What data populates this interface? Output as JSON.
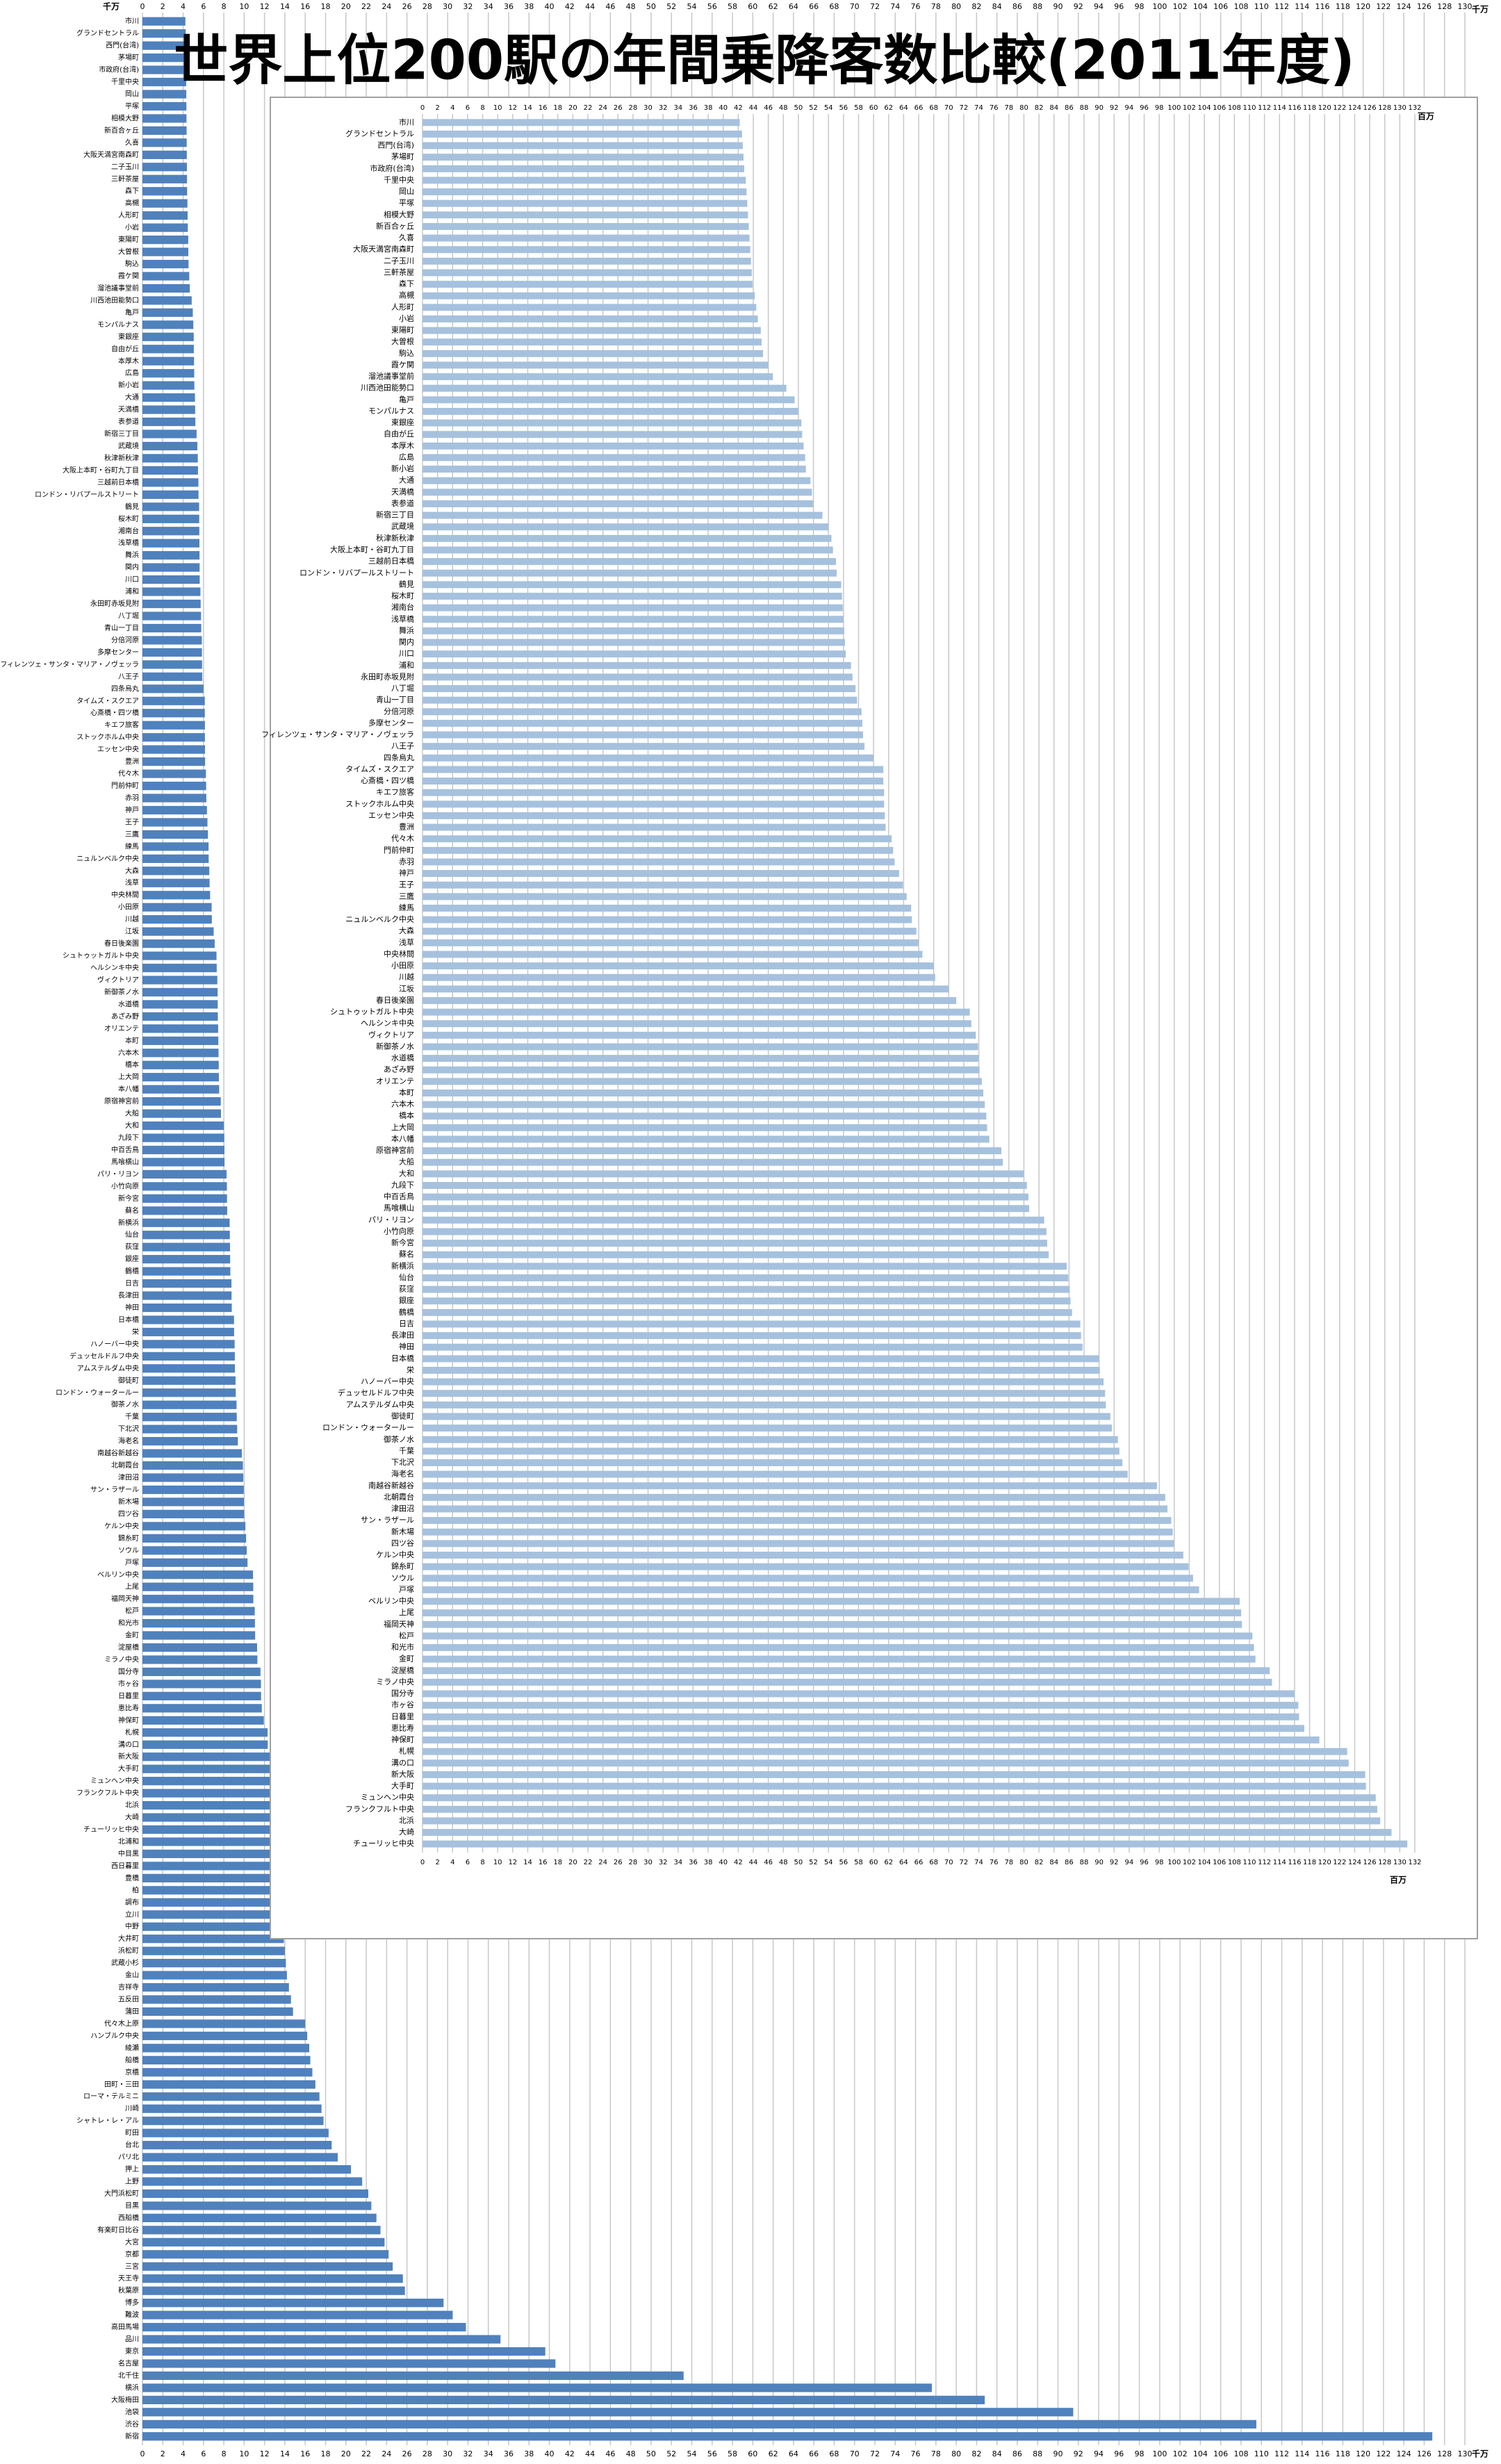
{
  "chart_data": [
    {
      "type": "bar",
      "orientation": "horizontal",
      "title": "世界上位200駅の年間乗降客数比較(2011年度)",
      "unit": "千万",
      "color": "#4f81bd",
      "grid": true,
      "xlim": [
        0,
        130
      ],
      "xticks": [
        0,
        2,
        4,
        6,
        8,
        10,
        12,
        14,
        16,
        18,
        20,
        22,
        24,
        26,
        28,
        30,
        32,
        34,
        36,
        38,
        40,
        42,
        44,
        46,
        48,
        50,
        52,
        54,
        56,
        58,
        60,
        62,
        64,
        66,
        68,
        70,
        72,
        74,
        76,
        78,
        80,
        82,
        84,
        86,
        88,
        90,
        92,
        94,
        96,
        98,
        100,
        102,
        104,
        106,
        108,
        110,
        112,
        114,
        116,
        118,
        120,
        122,
        124,
        126,
        128,
        130
      ],
      "categories": [
        "市川",
        "グランドセントラル",
        "西門(台湾)",
        "茅場町",
        "市政府(台湾)",
        "千里中央",
        "岡山",
        "平塚",
        "相模大野",
        "新百合ヶ丘",
        "久喜",
        "大阪天満宮南森町",
        "二子玉川",
        "三軒茶屋",
        "森下",
        "高槻",
        "人形町",
        "小岩",
        "東陽町",
        "大曽根",
        "駒込",
        "霞ケ関",
        "溜池議事堂前",
        "川西池田能勢口",
        "亀戸",
        "モンパルナス",
        "東銀座",
        "自由が丘",
        "本厚木",
        "広島",
        "新小岩",
        "大通",
        "天満橋",
        "表参道",
        "新宿三丁目",
        "武蔵境",
        "秋津新秋津",
        "大阪上本町・谷町九丁目",
        "三越前日本橋",
        "ロンドン・リバプールストリート",
        "鶴見",
        "桜木町",
        "湘南台",
        "浅草橋",
        "舞浜",
        "関内",
        "川口",
        "浦和",
        "永田町赤坂見附",
        "八丁堀",
        "青山一丁目",
        "分倍河原",
        "多摩センター",
        "フィレンツェ・サンタ・マリア・ノヴェッラ",
        "八王子",
        "四条烏丸",
        "タイムズ・スクエア",
        "心斎橋・四ツ橋",
        "キエフ旅客",
        "ストックホルム中央",
        "エッセン中央",
        "豊洲",
        "代々木",
        "門前仲町",
        "赤羽",
        "神戸",
        "王子",
        "三鷹",
        "練馬",
        "ニュルンベルク中央",
        "大森",
        "浅草",
        "中央林間",
        "小田原",
        "川越",
        "江坂",
        "春日後楽園",
        "シュトゥットガルト中央",
        "ヘルシンキ中央",
        "ヴィクトリア",
        "新御茶ノ水",
        "水道橋",
        "あざみ野",
        "オリエンテ",
        "本町",
        "六本木",
        "橋本",
        "上大岡",
        "本八幡",
        "原宿神宮前",
        "大船",
        "大和",
        "九段下",
        "中百舌鳥",
        "馬喰横山",
        "パリ・リヨン",
        "小竹向原",
        "新今宮",
        "蘇名",
        "新横浜",
        "仙台",
        "荻窪",
        "銀座",
        "鶴橋",
        "日吉",
        "長津田",
        "神田",
        "日本橋",
        "栄",
        "ハノーバー中央",
        "デュッセルドルフ中央",
        "アムステルダム中央",
        "御徒町",
        "ロンドン・ウォータールー",
        "御茶ノ水",
        "千葉",
        "下北沢",
        "海老名",
        "南越谷新越谷",
        "北朝霞台",
        "津田沼",
        "サン・ラザール",
        "新木場",
        "四ツ谷",
        "ケルン中央",
        "錦糸町",
        "ソウル",
        "戸塚",
        "ベルリン中央",
        "上尾",
        "福岡天神",
        "松戸",
        "和光市",
        "金町",
        "淀屋橋",
        "ミラノ中央",
        "国分寺",
        "市ヶ谷",
        "日暮里",
        "恵比寿",
        "神保町",
        "札幌",
        "溝の口",
        "新大阪",
        "大手町",
        "ミュンヘン中央",
        "フランクフルト中央",
        "北浜",
        "大崎",
        "チューリッヒ中央",
        "北浦和",
        "中目黒",
        "西日暮里",
        "豊橋",
        "柏",
        "調布",
        "立川",
        "中野",
        "大井町",
        "浜松町",
        "武蔵小杉",
        "金山",
        "吉祥寺",
        "五反田",
        "蒲田",
        "代々木上原",
        "ハンブルク中央",
        "綾瀬",
        "船橋",
        "京橋",
        "田町・三田",
        "ローマ・テルミニ",
        "川崎",
        "シャトレ・レ・アル",
        "町田",
        "台北",
        "パリ北",
        "押上",
        "上野",
        "大門浜松町",
        "目黒",
        "西船橋",
        "有楽町日比谷",
        "大宮",
        "京都",
        "三宮",
        "天王寺",
        "秋葉原",
        "博多",
        "難波",
        "高田馬場",
        "品川",
        "東京",
        "名古屋",
        "北千住",
        "横浜",
        "大阪梅田",
        "池袋",
        "渋谷",
        "新宿"
      ],
      "values": [
        4.22,
        4.25,
        4.26,
        4.27,
        4.28,
        4.3,
        4.31,
        4.32,
        4.33,
        4.34,
        4.35,
        4.36,
        4.37,
        4.38,
        4.39,
        4.42,
        4.44,
        4.46,
        4.5,
        4.51,
        4.53,
        4.6,
        4.66,
        4.84,
        4.95,
        5.0,
        5.04,
        5.05,
        5.07,
        5.09,
        5.1,
        5.16,
        5.18,
        5.2,
        5.32,
        5.4,
        5.44,
        5.46,
        5.5,
        5.51,
        5.57,
        5.58,
        5.59,
        5.6,
        5.61,
        5.62,
        5.63,
        5.7,
        5.72,
        5.76,
        5.78,
        5.84,
        5.85,
        5.86,
        5.88,
        6.0,
        6.13,
        6.13,
        6.14,
        6.14,
        6.15,
        6.16,
        6.24,
        6.26,
        6.28,
        6.34,
        6.39,
        6.44,
        6.5,
        6.51,
        6.57,
        6.6,
        6.65,
        6.8,
        6.82,
        7.0,
        7.1,
        7.28,
        7.3,
        7.36,
        7.39,
        7.4,
        7.41,
        7.44,
        7.46,
        7.48,
        7.5,
        7.51,
        7.54,
        7.7,
        7.72,
        8.0,
        8.04,
        8.06,
        8.07,
        8.27,
        8.3,
        8.31,
        8.33,
        8.57,
        8.59,
        8.61,
        8.62,
        8.64,
        8.75,
        8.76,
        8.78,
        9.0,
        9.01,
        9.06,
        9.08,
        9.09,
        9.15,
        9.17,
        9.25,
        9.27,
        9.31,
        9.38,
        9.77,
        9.88,
        9.91,
        9.96,
        9.98,
        10.0,
        10.12,
        10.19,
        10.25,
        10.33,
        10.87,
        10.89,
        10.9,
        11.04,
        11.06,
        11.08,
        11.27,
        11.3,
        11.6,
        11.65,
        11.66,
        11.73,
        11.93,
        12.3,
        12.32,
        12.54,
        12.55,
        12.68,
        12.7,
        12.74,
        12.89,
        13.1,
        13.2,
        13.2,
        13.3,
        13.4,
        13.5,
        13.6,
        13.7,
        13.8,
        13.9,
        14.0,
        14.1,
        14.2,
        14.4,
        14.6,
        14.8,
        16.0,
        16.2,
        16.4,
        16.5,
        16.7,
        17.0,
        17.4,
        17.6,
        17.8,
        18.3,
        18.6,
        19.2,
        20.5,
        21.6,
        22.2,
        22.5,
        23.0,
        23.4,
        23.8,
        24.2,
        24.6,
        25.6,
        25.8,
        29.6,
        30.5,
        31.8,
        35.2,
        39.6,
        40.6,
        53.2,
        77.6,
        82.8,
        91.5,
        109.5,
        126.8
      ]
    },
    {
      "type": "bar",
      "orientation": "horizontal",
      "unit": "百万",
      "color": "#a6c1de",
      "grid": true,
      "xlim": [
        0,
        132
      ],
      "xticks": [
        0,
        2,
        4,
        6,
        8,
        10,
        12,
        14,
        16,
        18,
        20,
        22,
        24,
        26,
        28,
        30,
        32,
        34,
        36,
        38,
        40,
        42,
        44,
        46,
        48,
        50,
        52,
        54,
        56,
        58,
        60,
        62,
        64,
        66,
        68,
        70,
        72,
        74,
        76,
        78,
        80,
        82,
        84,
        86,
        88,
        90,
        92,
        94,
        96,
        98,
        100,
        102,
        104,
        106,
        108,
        110,
        112,
        114,
        116,
        118,
        120,
        122,
        124,
        126,
        128,
        130,
        132
      ],
      "categories": [
        "市川",
        "グランドセントラル",
        "西門(台湾)",
        "茅場町",
        "市政府(台湾)",
        "千里中央",
        "岡山",
        "平塚",
        "相模大野",
        "新百合ヶ丘",
        "久喜",
        "大阪天満宮南森町",
        "二子玉川",
        "三軒茶屋",
        "森下",
        "高槻",
        "人形町",
        "小岩",
        "東陽町",
        "大曽根",
        "駒込",
        "霞ケ関",
        "溜池議事堂前",
        "川西池田能勢口",
        "亀戸",
        "モンパルナス",
        "東銀座",
        "自由が丘",
        "本厚木",
        "広島",
        "新小岩",
        "大通",
        "天満橋",
        "表参道",
        "新宿三丁目",
        "武蔵境",
        "秋津新秋津",
        "大阪上本町・谷町九丁目",
        "三越前日本橋",
        "ロンドン・リバプールストリート",
        "鶴見",
        "桜木町",
        "湘南台",
        "浅草橋",
        "舞浜",
        "関内",
        "川口",
        "浦和",
        "永田町赤坂見附",
        "八丁堀",
        "青山一丁目",
        "分倍河原",
        "多摩センター",
        "フィレンツェ・サンタ・マリア・ノヴェッラ",
        "八王子",
        "四条烏丸",
        "タイムズ・スクエア",
        "心斎橋・四ツ橋",
        "キエフ旅客",
        "ストックホルム中央",
        "エッセン中央",
        "豊洲",
        "代々木",
        "門前仲町",
        "赤羽",
        "神戸",
        "王子",
        "三鷹",
        "練馬",
        "ニュルンベルク中央",
        "大森",
        "浅草",
        "中央林間",
        "小田原",
        "川越",
        "江坂",
        "春日後楽園",
        "シュトゥットガルト中央",
        "ヘルシンキ中央",
        "ヴィクトリア",
        "新御茶ノ水",
        "水道橋",
        "あざみ野",
        "オリエンテ",
        "本町",
        "六本木",
        "橋本",
        "上大岡",
        "本八幡",
        "原宿神宮前",
        "大船",
        "大和",
        "九段下",
        "中百舌鳥",
        "馬喰横山",
        "パリ・リヨン",
        "小竹向原",
        "新今宮",
        "蘇名",
        "新横浜",
        "仙台",
        "荻窪",
        "銀座",
        "鶴橋",
        "日吉",
        "長津田",
        "神田",
        "日本橋",
        "栄",
        "ハノーバー中央",
        "デュッセルドルフ中央",
        "アムステルダム中央",
        "御徒町",
        "ロンドン・ウォータールー",
        "御茶ノ水",
        "千葉",
        "下北沢",
        "海老名",
        "南越谷新越谷",
        "北朝霞台",
        "津田沼",
        "サン・ラザール",
        "新木場",
        "四ツ谷",
        "ケルン中央",
        "錦糸町",
        "ソウル",
        "戸塚",
        "ベルリン中央",
        "上尾",
        "福岡天神",
        "松戸",
        "和光市",
        "金町",
        "淀屋橋",
        "ミラノ中央",
        "国分寺",
        "市ヶ谷",
        "日暮里",
        "恵比寿",
        "神保町",
        "札幌",
        "溝の口",
        "新大阪",
        "大手町",
        "ミュンヘン中央",
        "フランクフルト中央",
        "北浜",
        "大崎",
        "チューリッヒ中央"
      ],
      "values": [
        42.2,
        42.5,
        42.6,
        42.7,
        42.8,
        43.0,
        43.1,
        43.2,
        43.3,
        43.4,
        43.5,
        43.6,
        43.7,
        43.8,
        43.9,
        44.2,
        44.4,
        44.6,
        45.0,
        45.1,
        45.3,
        46.0,
        46.6,
        48.4,
        49.5,
        50.0,
        50.4,
        50.5,
        50.7,
        50.9,
        51.0,
        51.6,
        51.8,
        52.0,
        53.2,
        54.0,
        54.4,
        54.6,
        55.0,
        55.1,
        55.7,
        55.8,
        55.9,
        56.0,
        56.1,
        56.2,
        56.3,
        57.0,
        57.2,
        57.6,
        57.8,
        58.4,
        58.5,
        58.6,
        58.8,
        60.0,
        61.3,
        61.3,
        61.4,
        61.4,
        61.5,
        61.6,
        62.4,
        62.6,
        62.8,
        63.4,
        63.9,
        64.4,
        65.0,
        65.1,
        65.7,
        66.0,
        66.5,
        68.0,
        68.2,
        70.0,
        71.0,
        72.8,
        73.0,
        73.6,
        73.9,
        74.0,
        74.1,
        74.4,
        74.6,
        74.8,
        75.0,
        75.1,
        75.4,
        77.0,
        77.2,
        80.0,
        80.4,
        80.6,
        80.7,
        82.7,
        83.0,
        83.1,
        83.3,
        85.7,
        85.9,
        86.1,
        86.2,
        86.4,
        87.5,
        87.6,
        87.8,
        90.0,
        90.1,
        90.6,
        90.8,
        90.9,
        91.5,
        91.7,
        92.5,
        92.7,
        93.1,
        93.8,
        97.7,
        98.8,
        99.1,
        99.6,
        99.8,
        100.0,
        101.2,
        101.9,
        102.5,
        103.3,
        108.7,
        108.9,
        109.0,
        110.4,
        110.6,
        110.8,
        112.7,
        113.0,
        116.0,
        116.5,
        116.6,
        117.3,
        119.3,
        123.0,
        123.2,
        125.4,
        125.5,
        126.8,
        127.0,
        127.4,
        128.9,
        131.0
      ]
    }
  ]
}
